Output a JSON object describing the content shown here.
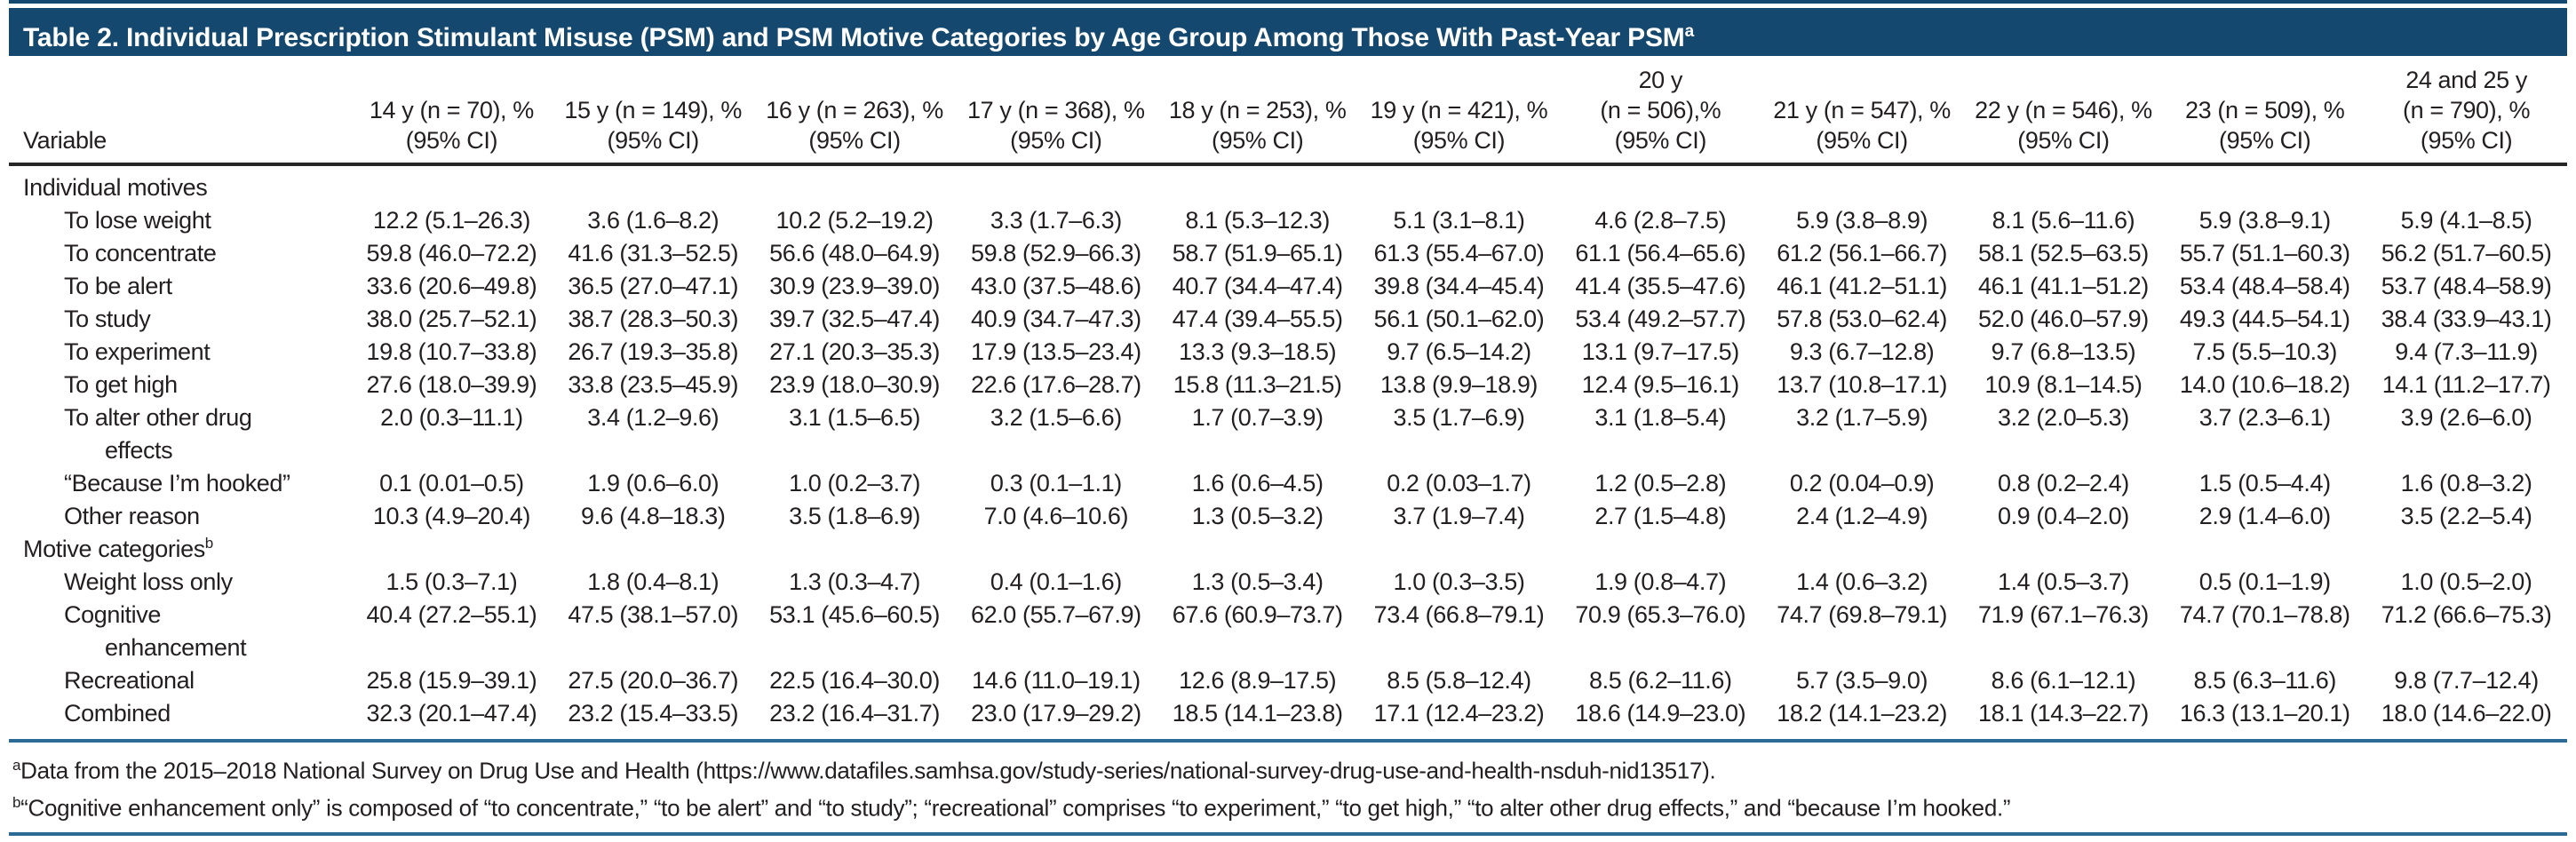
{
  "colors": {
    "title_bar": "#14486e",
    "rule_blue": "#2b6b96",
    "header_rule": "#262626",
    "text": "#231f20"
  },
  "title": {
    "text": "Table 2. Individual Prescription Stimulant Misuse (PSM) and PSM Motive Categories by Age Group Among Those With Past-Year PSM",
    "superscript": "a"
  },
  "table": {
    "variable_header": "Variable",
    "columns": [
      {
        "lines": [
          "14 y (n = 70), %",
          "(95% CI)"
        ]
      },
      {
        "lines": [
          "15 y (n = 149), %",
          "(95% CI)"
        ]
      },
      {
        "lines": [
          "16 y (n = 263), %",
          "(95% CI)"
        ]
      },
      {
        "lines": [
          "17 y (n = 368), %",
          "(95% CI)"
        ]
      },
      {
        "lines": [
          "18 y (n = 253), %",
          "(95% CI)"
        ]
      },
      {
        "lines": [
          "19 y (n = 421), %",
          "(95% CI)"
        ]
      },
      {
        "lines": [
          "20 y",
          "(n = 506),%",
          "(95% CI)"
        ]
      },
      {
        "lines": [
          "21 y (n = 547), %",
          "(95% CI)"
        ]
      },
      {
        "lines": [
          "22 y (n = 546), %",
          "(95% CI)"
        ]
      },
      {
        "lines": [
          "23 (n = 509), %",
          "(95% CI)"
        ]
      },
      {
        "lines": [
          "24 and 25 y",
          "(n = 790), %",
          "(95% CI)"
        ]
      }
    ],
    "rows": [
      {
        "type": "section",
        "label": "Individual motives",
        "sup": ""
      },
      {
        "type": "item",
        "label": "To lose weight",
        "values": [
          "12.2 (5.1–26.3)",
          "3.6 (1.6–8.2)",
          "10.2 (5.2–19.2)",
          "3.3 (1.7–6.3)",
          "8.1 (5.3–12.3)",
          "5.1 (3.1–8.1)",
          "4.6 (2.8–7.5)",
          "5.9 (3.8–8.9)",
          "8.1 (5.6–11.6)",
          "5.9 (3.8–9.1)",
          "5.9 (4.1–8.5)"
        ]
      },
      {
        "type": "item",
        "label": "To concentrate",
        "values": [
          "59.8 (46.0–72.2)",
          "41.6 (31.3–52.5)",
          "56.6 (48.0–64.9)",
          "59.8 (52.9–66.3)",
          "58.7 (51.9–65.1)",
          "61.3 (55.4–67.0)",
          "61.1 (56.4–65.6)",
          "61.2 (56.1–66.7)",
          "58.1 (52.5–63.5)",
          "55.7 (51.1–60.3)",
          "56.2 (51.7–60.5)"
        ]
      },
      {
        "type": "item",
        "label": "To be alert",
        "values": [
          "33.6 (20.6–49.8)",
          "36.5 (27.0–47.1)",
          "30.9 (23.9–39.0)",
          "43.0 (37.5–48.6)",
          "40.7 (34.4–47.4)",
          "39.8 (34.4–45.4)",
          "41.4 (35.5–47.6)",
          "46.1 (41.2–51.1)",
          "46.1 (41.1–51.2)",
          "53.4 (48.4–58.4)",
          "53.7 (48.4–58.9)"
        ]
      },
      {
        "type": "item",
        "label": "To study",
        "values": [
          "38.0 (25.7–52.1)",
          "38.7 (28.3–50.3)",
          "39.7 (32.5–47.4)",
          "40.9 (34.7–47.3)",
          "47.4 (39.4–55.5)",
          "56.1 (50.1–62.0)",
          "53.4 (49.2–57.7)",
          "57.8 (53.0–62.4)",
          "52.0 (46.0–57.9)",
          "49.3 (44.5–54.1)",
          "38.4 (33.9–43.1)"
        ]
      },
      {
        "type": "item",
        "label": "To experiment",
        "values": [
          "19.8 (10.7–33.8)",
          "26.7 (19.3–35.8)",
          "27.1 (20.3–35.3)",
          "17.9 (13.5–23.4)",
          "13.3 (9.3–18.5)",
          "9.7 (6.5–14.2)",
          "13.1 (9.7–17.5)",
          "9.3 (6.7–12.8)",
          "9.7 (6.8–13.5)",
          "7.5 (5.5–10.3)",
          "9.4 (7.3–11.9)"
        ]
      },
      {
        "type": "item",
        "label": "To get high",
        "values": [
          "27.6 (18.0–39.9)",
          "33.8 (23.5–45.9)",
          "23.9 (18.0–30.9)",
          "22.6 (17.6–28.7)",
          "15.8 (11.3–21.5)",
          "13.8 (9.9–18.9)",
          "12.4 (9.5–16.1)",
          "13.7 (10.8–17.1)",
          "10.9 (8.1–14.5)",
          "14.0 (10.6–18.2)",
          "14.1 (11.2–17.7)"
        ]
      },
      {
        "type": "item",
        "label": "To alter other drug\neffects",
        "values": [
          "2.0 (0.3–11.1)",
          "3.4 (1.2–9.6)",
          "3.1 (1.5–6.5)",
          "3.2 (1.5–6.6)",
          "1.7 (0.7–3.9)",
          "3.5 (1.7–6.9)",
          "3.1 (1.8–5.4)",
          "3.2 (1.7–5.9)",
          "3.2 (2.0–5.3)",
          "3.7 (2.3–6.1)",
          "3.9 (2.6–6.0)"
        ]
      },
      {
        "type": "item",
        "label": "“Because I’m hooked”",
        "values": [
          "0.1 (0.01–0.5)",
          "1.9 (0.6–6.0)",
          "1.0 (0.2–3.7)",
          "0.3 (0.1–1.1)",
          "1.6 (0.6–4.5)",
          "0.2 (0.03–1.7)",
          "1.2 (0.5–2.8)",
          "0.2 (0.04–0.9)",
          "0.8 (0.2–2.4)",
          "1.5 (0.5–4.4)",
          "1.6 (0.8–3.2)"
        ]
      },
      {
        "type": "item",
        "label": "Other reason",
        "values": [
          "10.3 (4.9–20.4)",
          "9.6 (4.8–18.3)",
          "3.5 (1.8–6.9)",
          "7.0 (4.6–10.6)",
          "1.3 (0.5–3.2)",
          "3.7 (1.9–7.4)",
          "2.7 (1.5–4.8)",
          "2.4 (1.2–4.9)",
          "0.9 (0.4–2.0)",
          "2.9 (1.4–6.0)",
          "3.5 (2.2–5.4)"
        ]
      },
      {
        "type": "section",
        "label": "Motive categories",
        "sup": "b"
      },
      {
        "type": "item",
        "label": "Weight loss only",
        "values": [
          "1.5 (0.3–7.1)",
          "1.8 (0.4–8.1)",
          "1.3 (0.3–4.7)",
          "0.4 (0.1–1.6)",
          "1.3 (0.5–3.4)",
          "1.0 (0.3–3.5)",
          "1.9 (0.8–4.7)",
          "1.4 (0.6–3.2)",
          "1.4 (0.5–3.7)",
          "0.5 (0.1–1.9)",
          "1.0 (0.5–2.0)"
        ]
      },
      {
        "type": "item",
        "label": "Cognitive\nenhancement",
        "values": [
          "40.4 (27.2–55.1)",
          "47.5 (38.1–57.0)",
          "53.1 (45.6–60.5)",
          "62.0 (55.7–67.9)",
          "67.6 (60.9–73.7)",
          "73.4 (66.8–79.1)",
          "70.9 (65.3–76.0)",
          "74.7 (69.8–79.1)",
          "71.9 (67.1–76.3)",
          "74.7 (70.1–78.8)",
          "71.2 (66.6–75.3)"
        ]
      },
      {
        "type": "item",
        "label": "Recreational",
        "values": [
          "25.8 (15.9–39.1)",
          "27.5 (20.0–36.7)",
          "22.5 (16.4–30.0)",
          "14.6 (11.0–19.1)",
          "12.6 (8.9–17.5)",
          "8.5 (5.8–12.4)",
          "8.5 (6.2–11.6)",
          "5.7 (3.5–9.0)",
          "8.6 (6.1–12.1)",
          "8.5 (6.3–11.6)",
          "9.8 (7.7–12.4)"
        ]
      },
      {
        "type": "item",
        "label": "Combined",
        "values": [
          "32.3 (20.1–47.4)",
          "23.2 (15.4–33.5)",
          "23.2 (16.4–31.7)",
          "23.0 (17.9–29.2)",
          "18.5 (14.1–23.8)",
          "17.1 (12.4–23.2)",
          "18.6 (14.9–23.0)",
          "18.2 (14.1–23.2)",
          "18.1 (14.3–22.7)",
          "16.3 (13.1–20.1)",
          "18.0 (14.6–22.0)"
        ]
      }
    ]
  },
  "footnotes": [
    {
      "sup": "a",
      "text": "Data from the 2015–2018 National Survey on Drug Use and Health (https://www.datafiles.samhsa.gov/study-series/national-survey-drug-use-and-health-nsduh-nid13517)."
    },
    {
      "sup": "b",
      "text": "“Cognitive enhancement only” is composed of “to concentrate,” “to be alert” and “to study”; “recreational” comprises “to experiment,” “to get high,” “to alter other drug effects,” and “because I’m hooked.”"
    }
  ]
}
